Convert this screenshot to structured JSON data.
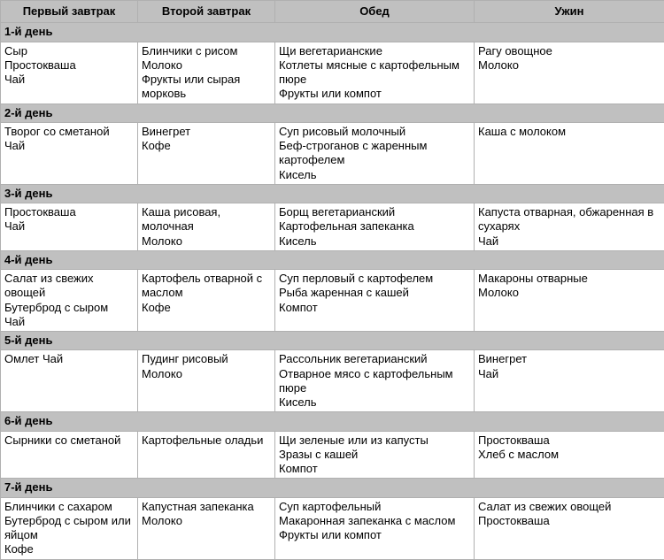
{
  "headers": [
    "Первый завтрак",
    "Второй завтрак",
    "Обед",
    "Ужин"
  ],
  "days": [
    {
      "label": "1-й день",
      "cells": [
        "Сыр\nПростокваша\nЧай",
        "Блинчики с рисом\nМолоко\nФрукты или сырая морковь",
        "Щи вегетарианские\nКотлеты мясные с картофельным пюре\nФрукты или компот",
        "Рагу овощное\nМолоко"
      ]
    },
    {
      "label": "2-й день",
      "cells": [
        "Творог со сметаной\nЧай",
        "Винегрет\nКофе",
        "Суп рисовый молочный\nБеф-строганов с жаренным картофелем\nКисель",
        "Каша с молоком"
      ]
    },
    {
      "label": "3-й день",
      "cells": [
        "Простокваша\nЧай",
        "Каша рисовая, молочная\nМолоко",
        "Борщ вегетарианский\nКартофельная запеканка\nКисель",
        "Капуста отварная, обжаренная в сухарях\nЧай"
      ]
    },
    {
      "label": "4-й день",
      "cells": [
        "Салат из свежих овощей\nБутерброд с сыром\nЧай",
        "Картофель отварной с маслом\nКофе",
        "Суп перловый с картофелем\nРыба жаренная с кашей\nКомпот",
        "Макароны отварные\nМолоко"
      ]
    },
    {
      "label": "5-й день",
      "cells": [
        "Омлет Чай",
        "Пудинг рисовый\nМолоко",
        "Рассольник вегетарианский\nОтварное мясо с картофельным пюре\nКисель",
        "Винегрет\nЧай"
      ]
    },
    {
      "label": "6-й день",
      "cells": [
        "Сырники со сметаной",
        "Картофельные оладьи",
        "Щи зеленые или из капусты\nЗразы с кашей\nКомпот",
        "Простокваша\nХлеб с маслом"
      ]
    },
    {
      "label": "7-й день",
      "cells": [
        "Блинчики с сахаром\nБутерброд с сыром или яйцом\nКофе",
        "Капустная запеканка\nМолоко",
        "Суп картофельный\nМакаронная запеканка с маслом\nФрукты или компот",
        "Салат из свежих овощей\nПростокваша"
      ]
    }
  ]
}
